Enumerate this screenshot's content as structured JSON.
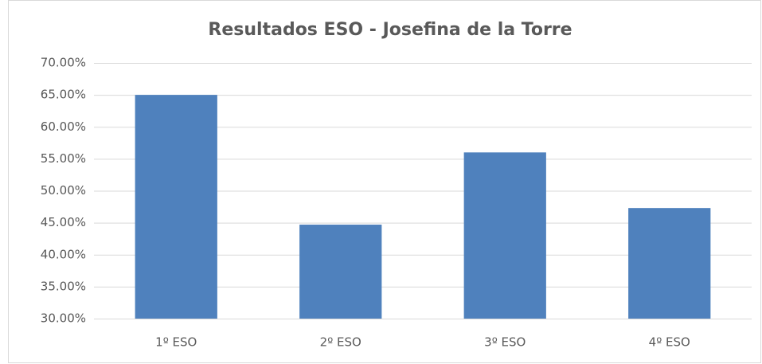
{
  "chart_data": {
    "type": "bar",
    "title": "Resultados ESO - Josefina de la Torre",
    "categories": [
      "1º ESO",
      "2º ESO",
      "3º ESO",
      "4º ESO"
    ],
    "values": [
      65,
      44.7,
      56,
      47.3
    ],
    "color": "#4f81bd",
    "ylim": [
      30,
      70
    ],
    "yticks": [
      {
        "value": 30,
        "label": "30.00%"
      },
      {
        "value": 35,
        "label": "35.00%"
      },
      {
        "value": 40,
        "label": "40.00%"
      },
      {
        "value": 45,
        "label": "45.00%"
      },
      {
        "value": 50,
        "label": "50.00%"
      },
      {
        "value": 55,
        "label": "55.00%"
      },
      {
        "value": 60,
        "label": "60.00%"
      },
      {
        "value": 65,
        "label": "65.00%"
      },
      {
        "value": 70,
        "label": "70.00%"
      }
    ],
    "grid": true
  }
}
